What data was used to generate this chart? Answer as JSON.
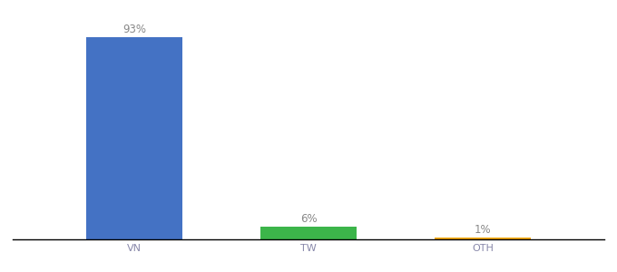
{
  "categories": [
    "VN",
    "TW",
    "OTH"
  ],
  "values": [
    93,
    6,
    1
  ],
  "bar_colors": [
    "#4472c4",
    "#3cb54a",
    "#f0a500"
  ],
  "labels": [
    "93%",
    "6%",
    "1%"
  ],
  "background_color": "#ffffff",
  "ylim": [
    0,
    100
  ],
  "label_fontsize": 8.5,
  "tick_fontsize": 8,
  "tick_color": "#8888aa",
  "label_color": "#888888",
  "bar_width": 0.55
}
